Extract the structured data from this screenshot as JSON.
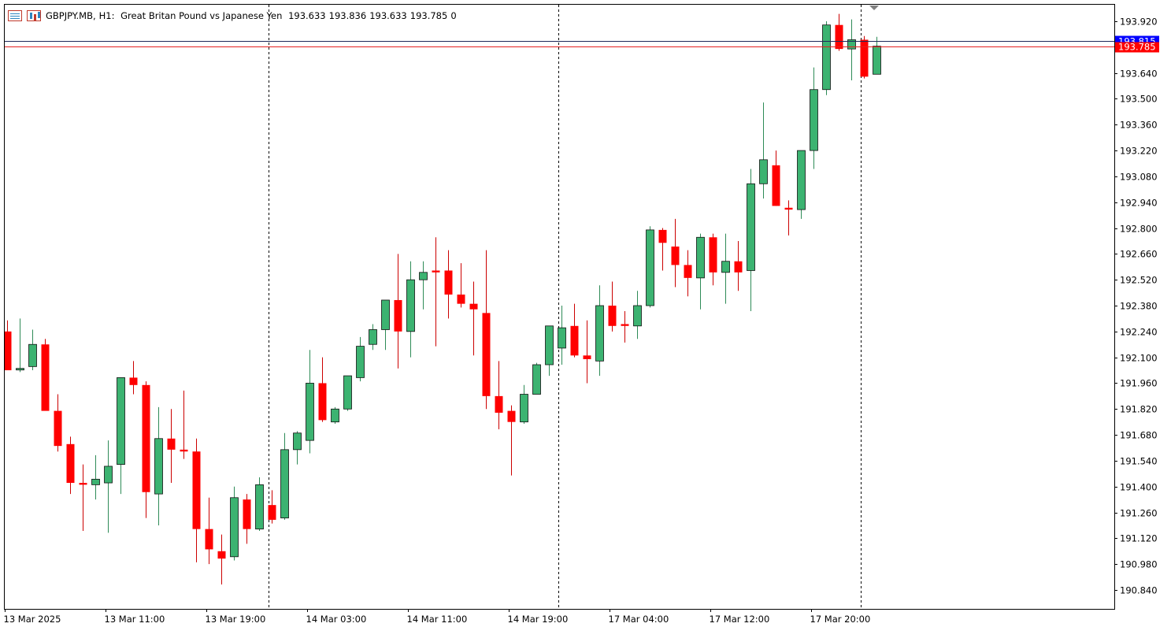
{
  "header": {
    "symbol": "GBPJPY.MB,",
    "timeframe": "H1:",
    "description": "Great Britan Pound vs Japanese Yen",
    "open": "193.633",
    "high": "193.836",
    "low": "193.633",
    "close": "193.785",
    "volume": "0"
  },
  "price_labels": {
    "ask": "193.815",
    "bid": "193.785"
  },
  "colors": {
    "bull": "#3cb371",
    "bear": "#ff0000",
    "wick_bear": "#cc0000",
    "bid_line": "#e41f1f",
    "ask_line": "#1f2a5a",
    "ask_label_bg": "#0000ff",
    "bid_label_bg": "#ff0000"
  },
  "chart_data": {
    "type": "candlestick",
    "title": "GBPJPY.MB, H1: Great Britan Pound vs Japanese Yen",
    "ylim": [
      190.7,
      193.98
    ],
    "y_ticks": [
      "193.920",
      "193.780",
      "193.640",
      "193.500",
      "193.360",
      "193.220",
      "193.080",
      "192.940",
      "192.800",
      "192.660",
      "192.520",
      "192.380",
      "192.240",
      "192.100",
      "191.960",
      "191.820",
      "191.680",
      "191.540",
      "191.400",
      "191.260",
      "191.120",
      "190.980",
      "190.840"
    ],
    "x_labels": [
      {
        "index": 0,
        "label": "13 Mar 2025"
      },
      {
        "index": 8,
        "label": "13 Mar 11:00"
      },
      {
        "index": 16,
        "label": "13 Mar 19:00"
      },
      {
        "index": 24,
        "label": "14 Mar 03:00"
      },
      {
        "index": 32,
        "label": "14 Mar 11:00"
      },
      {
        "index": 40,
        "label": "14 Mar 19:00"
      },
      {
        "index": 48,
        "label": "17 Mar 04:00"
      },
      {
        "index": 56,
        "label": "17 Mar 12:00"
      },
      {
        "index": 64,
        "label": "17 Mar 20:00"
      }
    ],
    "day_separators_after_index": [
      20.75,
      43.75,
      67.8
    ],
    "candles": [
      {
        "o": 192.24,
        "h": 192.3,
        "l": 192.03,
        "c": 192.03
      },
      {
        "o": 192.04,
        "h": 192.31,
        "l": 192.02,
        "c": 192.04
      },
      {
        "o": 192.05,
        "h": 192.25,
        "l": 192.03,
        "c": 192.17
      },
      {
        "o": 192.17,
        "h": 192.2,
        "l": 191.82,
        "c": 191.81
      },
      {
        "o": 191.81,
        "h": 191.9,
        "l": 191.59,
        "c": 191.62
      },
      {
        "o": 191.63,
        "h": 191.67,
        "l": 191.36,
        "c": 191.42
      },
      {
        "o": 191.42,
        "h": 191.52,
        "l": 191.16,
        "c": 191.41
      },
      {
        "o": 191.41,
        "h": 191.57,
        "l": 191.33,
        "c": 191.44
      },
      {
        "o": 191.42,
        "h": 191.65,
        "l": 191.15,
        "c": 191.51
      },
      {
        "o": 191.52,
        "h": 191.99,
        "l": 191.36,
        "c": 191.99
      },
      {
        "o": 191.99,
        "h": 192.08,
        "l": 191.9,
        "c": 191.95
      },
      {
        "o": 191.95,
        "h": 191.97,
        "l": 191.23,
        "c": 191.37
      },
      {
        "o": 191.36,
        "h": 191.83,
        "l": 191.19,
        "c": 191.66
      },
      {
        "o": 191.66,
        "h": 191.82,
        "l": 191.42,
        "c": 191.6
      },
      {
        "o": 191.6,
        "h": 191.92,
        "l": 191.55,
        "c": 191.59
      },
      {
        "o": 191.59,
        "h": 191.66,
        "l": 190.99,
        "c": 191.17
      },
      {
        "o": 191.17,
        "h": 191.34,
        "l": 190.98,
        "c": 191.06
      },
      {
        "o": 191.05,
        "h": 191.14,
        "l": 190.87,
        "c": 191.01
      },
      {
        "o": 191.02,
        "h": 191.4,
        "l": 191.0,
        "c": 191.34
      },
      {
        "o": 191.33,
        "h": 191.36,
        "l": 191.09,
        "c": 191.17
      },
      {
        "o": 191.17,
        "h": 191.45,
        "l": 191.16,
        "c": 191.41
      },
      {
        "o": 191.3,
        "h": 191.38,
        "l": 191.2,
        "c": 191.22
      },
      {
        "o": 191.23,
        "h": 191.69,
        "l": 191.22,
        "c": 191.6
      },
      {
        "o": 191.6,
        "h": 191.7,
        "l": 191.52,
        "c": 191.69
      },
      {
        "o": 191.65,
        "h": 192.14,
        "l": 191.58,
        "c": 191.96
      },
      {
        "o": 191.96,
        "h": 192.1,
        "l": 191.75,
        "c": 191.76
      },
      {
        "o": 191.75,
        "h": 191.83,
        "l": 191.74,
        "c": 191.82
      },
      {
        "o": 191.82,
        "h": 192.0,
        "l": 191.81,
        "c": 192.0
      },
      {
        "o": 191.99,
        "h": 192.21,
        "l": 191.97,
        "c": 192.16
      },
      {
        "o": 192.17,
        "h": 192.28,
        "l": 192.14,
        "c": 192.25
      },
      {
        "o": 192.25,
        "h": 192.41,
        "l": 192.14,
        "c": 192.41
      },
      {
        "o": 192.41,
        "h": 192.66,
        "l": 192.04,
        "c": 192.24
      },
      {
        "o": 192.24,
        "h": 192.62,
        "l": 192.1,
        "c": 192.52
      },
      {
        "o": 192.52,
        "h": 192.62,
        "l": 192.36,
        "c": 192.56
      },
      {
        "o": 192.57,
        "h": 192.75,
        "l": 192.16,
        "c": 192.56
      },
      {
        "o": 192.57,
        "h": 192.68,
        "l": 192.31,
        "c": 192.44
      },
      {
        "o": 192.44,
        "h": 192.61,
        "l": 192.37,
        "c": 192.39
      },
      {
        "o": 192.39,
        "h": 192.51,
        "l": 192.11,
        "c": 192.36
      },
      {
        "o": 192.34,
        "h": 192.68,
        "l": 191.82,
        "c": 191.89
      },
      {
        "o": 191.89,
        "h": 192.08,
        "l": 191.71,
        "c": 191.8
      },
      {
        "o": 191.81,
        "h": 191.84,
        "l": 191.46,
        "c": 191.75
      },
      {
        "o": 191.75,
        "h": 191.95,
        "l": 191.74,
        "c": 191.9
      },
      {
        "o": 191.9,
        "h": 192.07,
        "l": 191.9,
        "c": 192.06
      },
      {
        "o": 192.06,
        "h": 192.27,
        "l": 192.0,
        "c": 192.27
      },
      {
        "o": 192.15,
        "h": 192.38,
        "l": 192.06,
        "c": 192.26
      },
      {
        "o": 192.27,
        "h": 192.39,
        "l": 192.1,
        "c": 192.11
      },
      {
        "o": 192.11,
        "h": 192.3,
        "l": 191.96,
        "c": 192.09
      },
      {
        "o": 192.08,
        "h": 192.49,
        "l": 192.0,
        "c": 192.38
      },
      {
        "o": 192.38,
        "h": 192.51,
        "l": 192.24,
        "c": 192.27
      },
      {
        "o": 192.28,
        "h": 192.35,
        "l": 192.18,
        "c": 192.27
      },
      {
        "o": 192.27,
        "h": 192.46,
        "l": 192.2,
        "c": 192.38
      },
      {
        "o": 192.38,
        "h": 192.81,
        "l": 192.37,
        "c": 192.79
      },
      {
        "o": 192.79,
        "h": 192.8,
        "l": 192.57,
        "c": 192.72
      },
      {
        "o": 192.7,
        "h": 192.85,
        "l": 192.48,
        "c": 192.6
      },
      {
        "o": 192.6,
        "h": 192.68,
        "l": 192.43,
        "c": 192.53
      },
      {
        "o": 192.53,
        "h": 192.77,
        "l": 192.36,
        "c": 192.75
      },
      {
        "o": 192.75,
        "h": 192.77,
        "l": 192.49,
        "c": 192.56
      },
      {
        "o": 192.56,
        "h": 192.77,
        "l": 192.39,
        "c": 192.62
      },
      {
        "o": 192.62,
        "h": 192.73,
        "l": 192.46,
        "c": 192.56
      },
      {
        "o": 192.57,
        "h": 193.12,
        "l": 192.35,
        "c": 193.04
      },
      {
        "o": 193.04,
        "h": 193.48,
        "l": 192.96,
        "c": 193.17
      },
      {
        "o": 193.14,
        "h": 193.22,
        "l": 192.92,
        "c": 192.92
      },
      {
        "o": 192.91,
        "h": 192.95,
        "l": 192.76,
        "c": 192.9
      },
      {
        "o": 192.9,
        "h": 193.22,
        "l": 192.85,
        "c": 193.22
      },
      {
        "o": 193.22,
        "h": 193.67,
        "l": 193.12,
        "c": 193.55
      },
      {
        "o": 193.55,
        "h": 193.92,
        "l": 193.52,
        "c": 193.9
      },
      {
        "o": 193.9,
        "h": 193.96,
        "l": 193.76,
        "c": 193.77
      },
      {
        "o": 193.77,
        "h": 193.93,
        "l": 193.6,
        "c": 193.82
      },
      {
        "o": 193.82,
        "h": 193.84,
        "l": 193.61,
        "c": 193.62
      },
      {
        "o": 193.633,
        "h": 193.836,
        "l": 193.633,
        "c": 193.785
      }
    ]
  }
}
